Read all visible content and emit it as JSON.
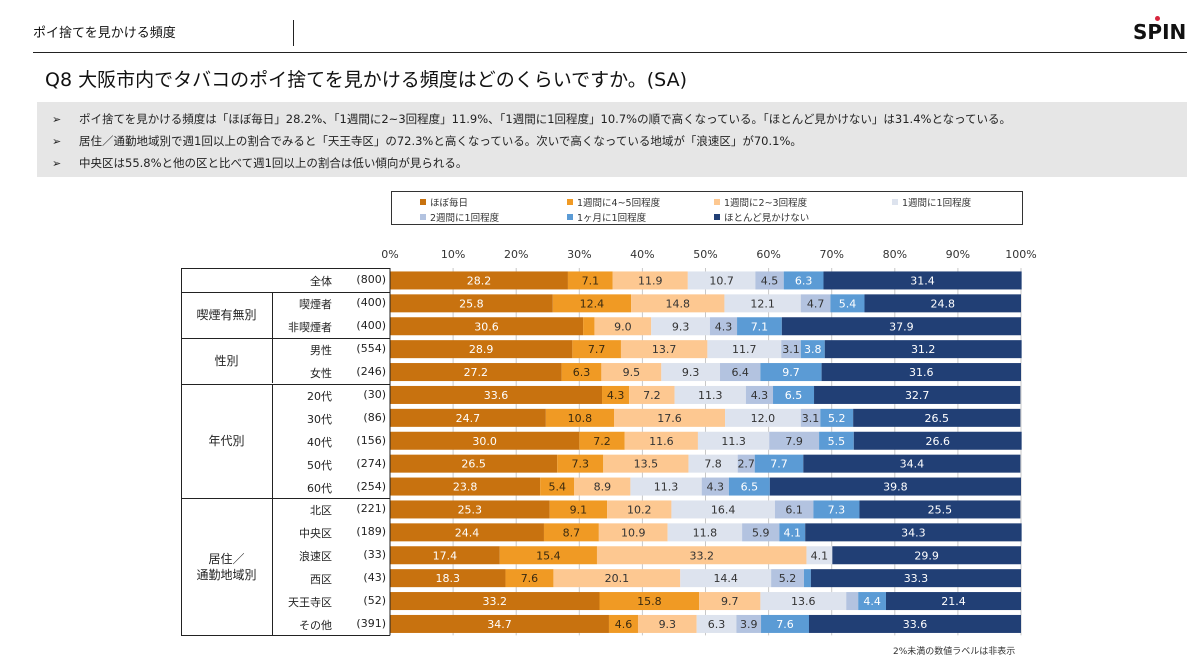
{
  "header": {
    "section_title": "ポイ捨てを見かける頻度",
    "logo": "SPIN"
  },
  "question": "Q8 大阪市内でタバコのポイ捨てを見かける頻度はどのくらいですか。(SA)",
  "summary": {
    "bullet": "➢",
    "items": [
      "ポイ捨てを見かける頻度は「ほぼ毎日」28.2%、「1週間に2~3回程度」11.9%、「1週間に1回程度」10.7%の順で高くなっている。「ほとんど見かけない」は31.4%となっている。",
      "居住／通勤地域別で週1回以上の割合でみると「天王寺区」の72.3%と高くなっている。次いで高くなっている地域が「浪速区」が70.1%。",
      "中央区は55.8%と他の区と比べて週1回以上の割合は低い傾向が見られる。"
    ]
  },
  "footnote": "2%未満の数値ラベルは非表示",
  "chart_data": {
    "type": "bar",
    "orientation": "horizontal-stacked-100",
    "title": "Q8 大阪市内でタバコのポイ捨てを見かける頻度はどのくらいですか。(SA)",
    "xlabel": "",
    "ylabel": "",
    "xlim": [
      0,
      100
    ],
    "x_ticks": [
      "0%",
      "10%",
      "20%",
      "30%",
      "40%",
      "50%",
      "60%",
      "70%",
      "80%",
      "90%",
      "100%"
    ],
    "grid": true,
    "legend_position": "top",
    "label_threshold": 2,
    "legend": [
      {
        "name": "ほぼ毎日",
        "color": "#c8720f"
      },
      {
        "name": "1週間に4~5回程度",
        "color": "#f09a24"
      },
      {
        "name": "1週間に2~3回程度",
        "color": "#fdc891"
      },
      {
        "name": "1週間に1回程度",
        "color": "#dde3ee"
      },
      {
        "name": "2週間に1回程度",
        "color": "#b3c3e0"
      },
      {
        "name": "1ヶ月に1回程度",
        "color": "#5b9bd5"
      },
      {
        "name": "ほとんど見かけない",
        "color": "#213f75"
      }
    ],
    "label_colors": [
      "#ffffff",
      "#3a2a10",
      "#333333",
      "#333333",
      "#333333",
      "#ffffff",
      "#ffffff"
    ],
    "groups": [
      {
        "name": "",
        "rows": [
          0
        ]
      },
      {
        "name": "喫煙有無別",
        "rows": [
          1,
          2
        ]
      },
      {
        "name": "性別",
        "rows": [
          3,
          4
        ]
      },
      {
        "name": "年代別",
        "rows": [
          5,
          6,
          7,
          8,
          9
        ]
      },
      {
        "name": "居住／\n通勤地域別",
        "rows": [
          10,
          11,
          12,
          13,
          14,
          15
        ]
      }
    ],
    "categories": [
      {
        "label": "全体",
        "n": "(800)"
      },
      {
        "label": "喫煙者",
        "n": "(400)"
      },
      {
        "label": "非喫煙者",
        "n": "(400)"
      },
      {
        "label": "男性",
        "n": "(554)"
      },
      {
        "label": "女性",
        "n": "(246)"
      },
      {
        "label": "20代",
        "n": "(30)"
      },
      {
        "label": "30代",
        "n": "(86)"
      },
      {
        "label": "40代",
        "n": "(156)"
      },
      {
        "label": "50代",
        "n": "(274)"
      },
      {
        "label": "60代",
        "n": "(254)"
      },
      {
        "label": "北区",
        "n": "(221)"
      },
      {
        "label": "中央区",
        "n": "(189)"
      },
      {
        "label": "浪速区",
        "n": "(33)"
      },
      {
        "label": "西区",
        "n": "(43)"
      },
      {
        "label": "天王寺区",
        "n": "(52)"
      },
      {
        "label": "その他",
        "n": "(391)"
      }
    ],
    "values": [
      [
        28.2,
        7.1,
        11.9,
        10.7,
        4.5,
        6.3,
        31.4
      ],
      [
        25.8,
        12.4,
        14.8,
        12.1,
        4.7,
        5.4,
        24.8
      ],
      [
        30.6,
        1.8,
        9.0,
        9.3,
        4.3,
        7.1,
        37.9
      ],
      [
        28.9,
        7.7,
        13.7,
        11.7,
        3.1,
        3.8,
        31.2
      ],
      [
        27.2,
        6.3,
        9.5,
        9.3,
        6.4,
        9.7,
        31.6
      ],
      [
        33.6,
        4.3,
        7.2,
        11.3,
        4.3,
        6.5,
        32.7
      ],
      [
        24.7,
        10.8,
        17.6,
        12.0,
        3.1,
        5.2,
        26.5
      ],
      [
        30.0,
        7.2,
        11.6,
        11.3,
        7.9,
        5.5,
        26.6
      ],
      [
        26.5,
        7.3,
        13.5,
        7.8,
        2.7,
        7.7,
        34.4
      ],
      [
        23.8,
        5.4,
        8.9,
        11.3,
        4.3,
        6.5,
        39.8
      ],
      [
        25.3,
        9.1,
        10.2,
        16.4,
        6.1,
        7.3,
        25.5
      ],
      [
        24.4,
        8.7,
        10.9,
        11.8,
        5.9,
        4.1,
        34.3
      ],
      [
        17.4,
        15.4,
        33.2,
        4.1,
        0.0,
        0.0,
        29.9
      ],
      [
        18.3,
        7.6,
        20.1,
        14.4,
        5.2,
        1.1,
        33.3
      ],
      [
        33.2,
        15.8,
        9.7,
        13.6,
        1.9,
        4.4,
        21.4
      ],
      [
        34.7,
        4.6,
        9.3,
        6.3,
        3.9,
        7.6,
        33.6
      ]
    ]
  }
}
